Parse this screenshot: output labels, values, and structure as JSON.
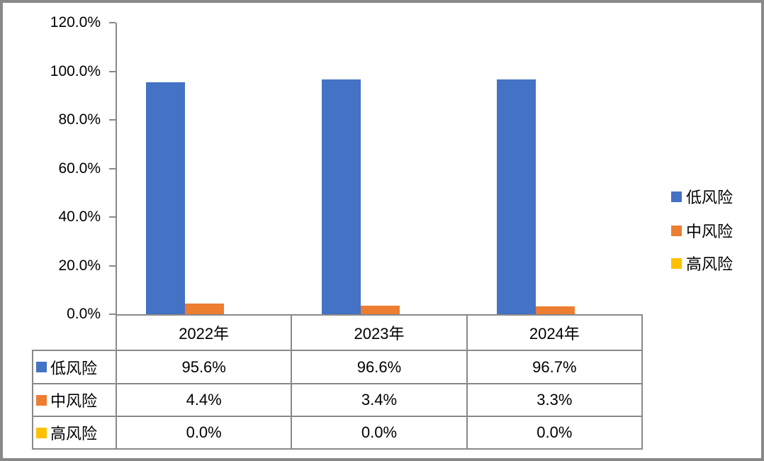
{
  "frame": {
    "background": "#ffffff",
    "border_color": "#898989"
  },
  "chart_data": {
    "type": "bar",
    "title": "",
    "categories": [
      "2022年",
      "2023年",
      "2024年"
    ],
    "series": [
      {
        "name": "低风险",
        "color": "#4472C4",
        "values": [
          95.6,
          96.6,
          96.7
        ],
        "value_labels": [
          "95.6%",
          "96.6%",
          "96.7%"
        ]
      },
      {
        "name": "中风险",
        "color": "#ED7D31",
        "values": [
          4.4,
          3.4,
          3.3
        ],
        "value_labels": [
          "4.4%",
          "3.4%",
          "3.3%"
        ]
      },
      {
        "name": "高风险",
        "color": "#FFC000",
        "values": [
          0.0,
          0.0,
          0.0
        ],
        "value_labels": [
          "0.0%",
          "0.0%",
          "0.0%"
        ]
      }
    ],
    "xlabel": "",
    "ylabel": "",
    "ylim": [
      0,
      120
    ],
    "yticks": [
      0,
      20,
      40,
      60,
      80,
      100,
      120
    ],
    "ytick_labels": [
      "0.0%",
      "20.0%",
      "40.0%",
      "60.0%",
      "80.0%",
      "100.0%",
      "120.0%"
    ],
    "grid": false,
    "legend_position": "right",
    "data_table": true,
    "axis_color": "#898989",
    "text_color": "#000000"
  }
}
